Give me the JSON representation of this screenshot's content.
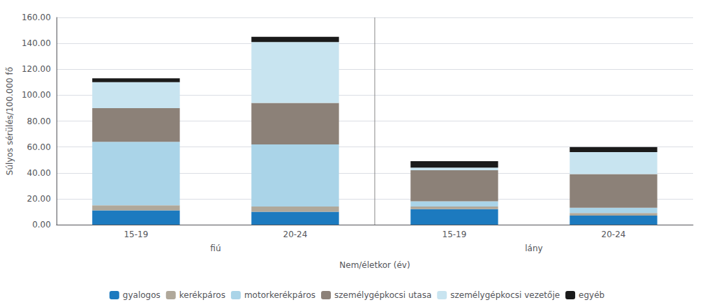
{
  "chart_data": {
    "type": "bar",
    "stacked": true,
    "categories": [
      "15-19",
      "20-24",
      "15-19",
      "20-24"
    ],
    "group_labels": [
      "fiú",
      "lány"
    ],
    "series": [
      {
        "name": "gyalogos",
        "color": "#1c7abf",
        "values": [
          11.0,
          10.0,
          12.0,
          7.0
        ]
      },
      {
        "name": "kerékpáros",
        "color": "#b0a89a",
        "values": [
          4.0,
          4.0,
          2.0,
          2.0
        ]
      },
      {
        "name": "motorkerékpáros",
        "color": "#aad4e8",
        "values": [
          49.0,
          48.0,
          4.0,
          4.0
        ]
      },
      {
        "name": "személygépkocsi utasa",
        "color": "#8c8178",
        "values": [
          26.0,
          32.0,
          24.0,
          26.0
        ]
      },
      {
        "name": "személygépkocsi vezetője",
        "color": "#c8e4f0",
        "values": [
          20.0,
          47.0,
          2.0,
          17.0
        ]
      },
      {
        "name": "egyéb",
        "color": "#1a1a1a",
        "values": [
          3.0,
          4.0,
          5.0,
          4.0
        ]
      }
    ],
    "ylabel": "Súlyos sérülés/100.000 fő",
    "xlabel": "Nem/életkor (év)",
    "ylim": [
      0,
      160
    ],
    "yticks": [
      {
        "value": 0,
        "label": "0.00"
      },
      {
        "value": 20,
        "label": "20.00"
      },
      {
        "value": 40,
        "label": "40.00"
      },
      {
        "value": 60,
        "label": "60.00"
      },
      {
        "value": 80,
        "label": "80.00"
      },
      {
        "value": 100,
        "label": "100.00"
      },
      {
        "value": 120,
        "label": "120.00"
      },
      {
        "value": 140,
        "label": "140.00"
      },
      {
        "value": 160,
        "label": "160.00"
      }
    ],
    "grid": true,
    "legend": "bottom"
  }
}
